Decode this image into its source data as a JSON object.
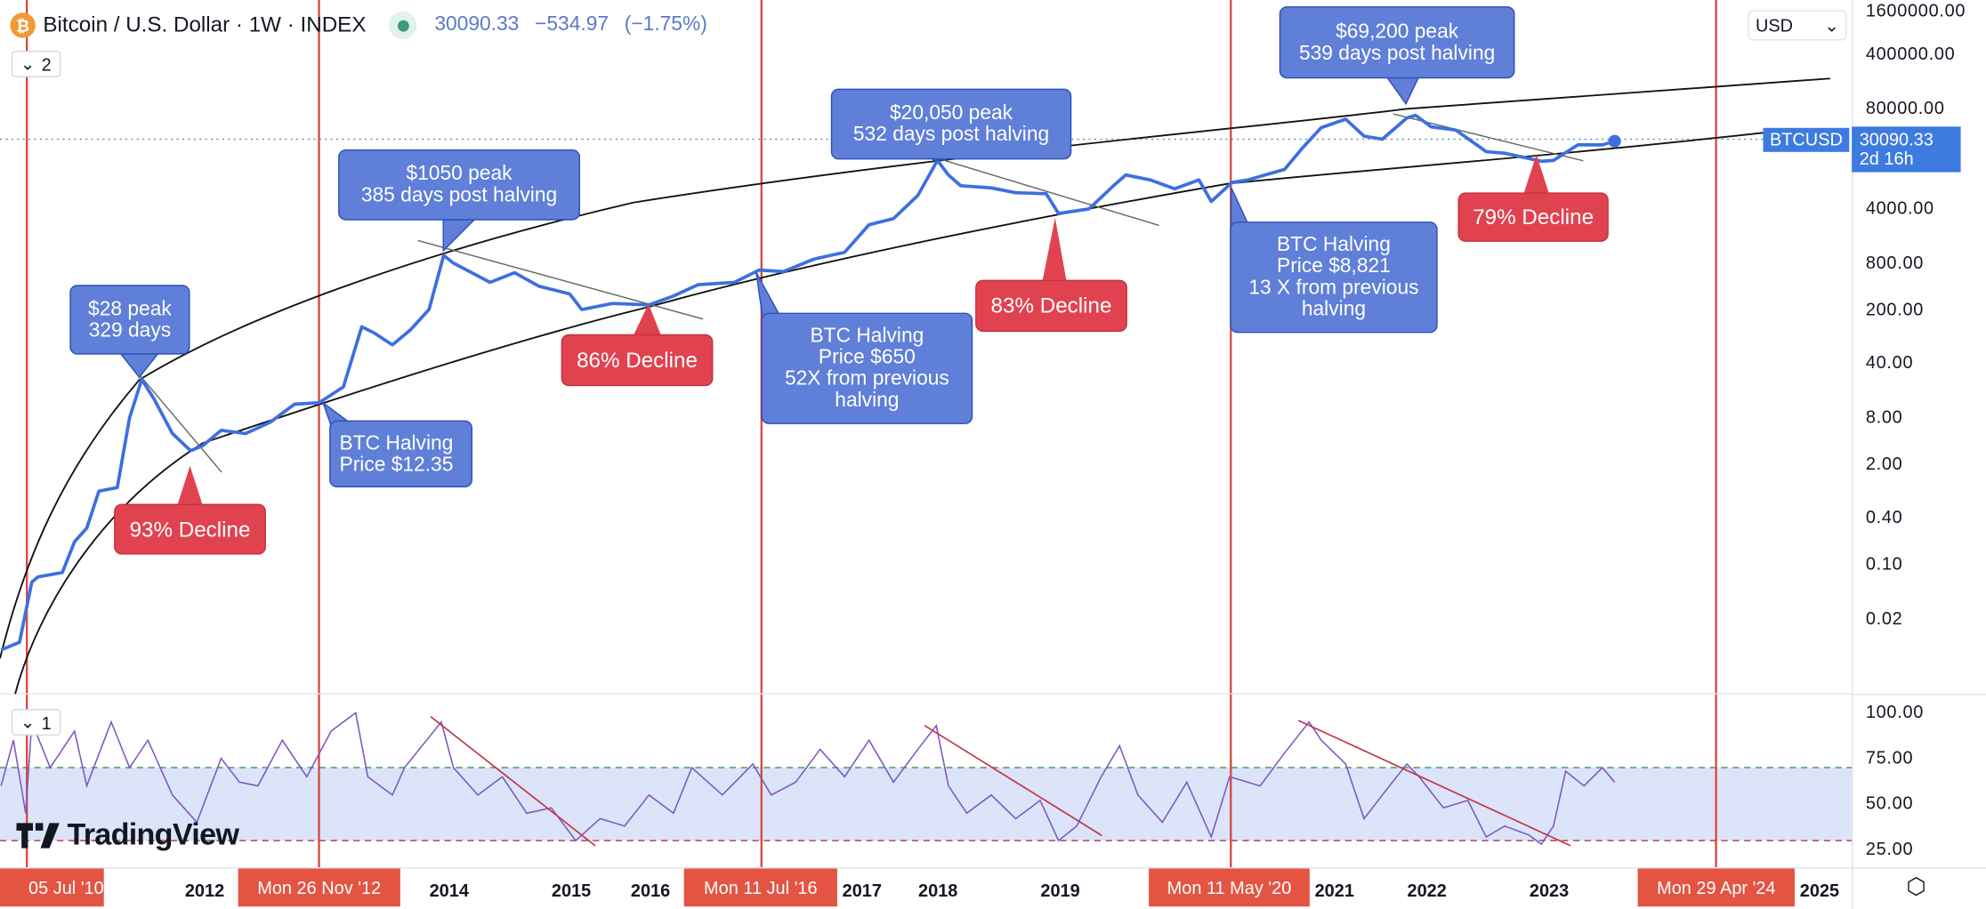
{
  "header": {
    "symbol_title": "Bitcoin / U.S. Dollar · 1W · INDEX",
    "last_price": "30090.33",
    "change": "−534.97",
    "change_pct": "(−1.75%)",
    "main_legend_count": "2",
    "rsi_legend_count": "1"
  },
  "price_axis": {
    "currency": "USD",
    "ticks": [
      "1600000.00",
      "400000.00",
      "80000.00",
      "4000.00",
      "800.00",
      "200.00",
      "40.00",
      "8.00",
      "2.00",
      "0.40",
      "0.10",
      "0.02"
    ],
    "tick_values": [
      1600000,
      400000,
      80000,
      4000,
      800,
      200,
      40,
      8,
      2,
      0.4,
      0.1,
      0.02
    ],
    "last_price_label": "30090.33",
    "countdown": "2d 16h",
    "symbol_tag": "BTCUSD"
  },
  "rsi_axis": {
    "ticks": [
      "100.00",
      "75.00",
      "50.00",
      "25.00"
    ],
    "tick_values": [
      100,
      75,
      50,
      25
    ]
  },
  "time_axis": {
    "years": [
      "2012",
      "2014",
      "2015",
      "2016",
      "2017",
      "2018",
      "2019",
      "2021",
      "2022",
      "2023",
      "2025"
    ],
    "halving_markers": [
      "05 Jul '10",
      "Mon 26 Nov '12",
      "Mon 11 Jul '16",
      "Mon 11 May '20",
      "Mon 29 Apr '24"
    ]
  },
  "branding": {
    "logo_text": "TradingView"
  },
  "colors": {
    "price_line": "#3d6fe0",
    "rsi_line": "#7e57c2",
    "rsi_band": "#dbe4f8",
    "halving_line": "#d9443a",
    "callout_blue": "#5f7fd8",
    "callout_red": "#e0434f",
    "price_tag": "#3d7be0"
  },
  "annotations": {
    "peak_2011": [
      "$28 peak",
      "329 days"
    ],
    "peak_2013": [
      "$1050 peak",
      "385 days post halving"
    ],
    "peak_2017": [
      "$20,050 peak",
      "532 days post halving"
    ],
    "peak_2021": [
      "$69,200 peak",
      "539 days post halving"
    ],
    "halving_2012": [
      "BTC Halving",
      "Price $12.35"
    ],
    "halving_2016": [
      "BTC Halving",
      "Price $650",
      "52X from previous",
      "halving"
    ],
    "halving_2020": [
      "BTC Halving",
      "Price $8,821",
      "13 X from previous",
      "halving"
    ],
    "decline_2011": "93% Decline",
    "decline_2015": "86% Decline",
    "decline_2018": "83% Decline",
    "decline_2022": "79% Decline"
  },
  "chart_data": [
    {
      "type": "line",
      "title": "Bitcoin / U.S. Dollar · 1W · INDEX",
      "y_scale": "log",
      "ylim": [
        0.005,
        1800000
      ],
      "xlim": [
        2010.3,
        2025.3
      ],
      "series": [
        {
          "name": "BTCUSD",
          "points": [
            [
              2010.3,
              0.008
            ],
            [
              2010.45,
              0.01
            ],
            [
              2010.55,
              0.06
            ],
            [
              2010.6,
              0.07
            ],
            [
              2010.8,
              0.08
            ],
            [
              2010.9,
              0.2
            ],
            [
              2011.0,
              0.3
            ],
            [
              2011.1,
              0.9
            ],
            [
              2011.25,
              1
            ],
            [
              2011.35,
              8
            ],
            [
              2011.45,
              25
            ],
            [
              2011.55,
              14
            ],
            [
              2011.7,
              5
            ],
            [
              2011.85,
              3
            ],
            [
              2011.95,
              3.5
            ],
            [
              2012.1,
              5.5
            ],
            [
              2012.3,
              5
            ],
            [
              2012.5,
              7
            ],
            [
              2012.7,
              12
            ],
            [
              2012.9,
              12.5
            ],
            [
              2013.1,
              20
            ],
            [
              2013.25,
              120
            ],
            [
              2013.35,
              100
            ],
            [
              2013.5,
              70
            ],
            [
              2013.65,
              110
            ],
            [
              2013.8,
              200
            ],
            [
              2013.92,
              1000
            ],
            [
              2014.0,
              800
            ],
            [
              2014.15,
              600
            ],
            [
              2014.3,
              450
            ],
            [
              2014.5,
              600
            ],
            [
              2014.7,
              400
            ],
            [
              2014.95,
              320
            ],
            [
              2015.05,
              200
            ],
            [
              2015.3,
              240
            ],
            [
              2015.6,
              230
            ],
            [
              2015.8,
              300
            ],
            [
              2016.0,
              420
            ],
            [
              2016.3,
              450
            ],
            [
              2016.5,
              650
            ],
            [
              2016.7,
              620
            ],
            [
              2016.95,
              900
            ],
            [
              2017.2,
              1100
            ],
            [
              2017.4,
              2500
            ],
            [
              2017.6,
              3000
            ],
            [
              2017.8,
              6000
            ],
            [
              2017.96,
              17000
            ],
            [
              2018.05,
              11000
            ],
            [
              2018.15,
              8000
            ],
            [
              2018.4,
              7500
            ],
            [
              2018.6,
              6500
            ],
            [
              2018.85,
              6300
            ],
            [
              2018.95,
              3500
            ],
            [
              2019.2,
              4000
            ],
            [
              2019.4,
              8000
            ],
            [
              2019.5,
              11000
            ],
            [
              2019.7,
              9500
            ],
            [
              2019.9,
              7300
            ],
            [
              2020.1,
              9500
            ],
            [
              2020.2,
              5000
            ],
            [
              2020.37,
              8800
            ],
            [
              2020.5,
              9500
            ],
            [
              2020.8,
              13000
            ],
            [
              2020.95,
              25000
            ],
            [
              2021.1,
              45000
            ],
            [
              2021.3,
              58000
            ],
            [
              2021.45,
              35000
            ],
            [
              2021.6,
              32000
            ],
            [
              2021.8,
              60000
            ],
            [
              2021.87,
              65000
            ],
            [
              2022.0,
              46000
            ],
            [
              2022.2,
              42000
            ],
            [
              2022.45,
              22000
            ],
            [
              2022.6,
              21000
            ],
            [
              2022.9,
              16500
            ],
            [
              2023.0,
              17000
            ],
            [
              2023.2,
              27000
            ],
            [
              2023.4,
              27000
            ],
            [
              2023.5,
              30090.33
            ]
          ]
        }
      ]
    },
    {
      "type": "line",
      "ylim": [
        20,
        105
      ],
      "reference_lines": [
        70,
        30
      ],
      "band": [
        30,
        70
      ],
      "series": [
        {
          "points": [
            [
              2010.3,
              60
            ],
            [
              2010.4,
              85
            ],
            [
              2010.5,
              45
            ],
            [
              2010.55,
              95
            ],
            [
              2010.7,
              70
            ],
            [
              2010.9,
              90
            ],
            [
              2011.0,
              60
            ],
            [
              2011.2,
              95
            ],
            [
              2011.35,
              70
            ],
            [
              2011.5,
              85
            ],
            [
              2011.7,
              55
            ],
            [
              2011.9,
              40
            ],
            [
              2012.1,
              75
            ],
            [
              2012.25,
              62
            ],
            [
              2012.4,
              60
            ],
            [
              2012.6,
              85
            ],
            [
              2012.8,
              65
            ],
            [
              2013.0,
              90
            ],
            [
              2013.2,
              100
            ],
            [
              2013.3,
              65
            ],
            [
              2013.5,
              55
            ],
            [
              2013.6,
              70
            ],
            [
              2013.9,
              95
            ],
            [
              2014.0,
              70
            ],
            [
              2014.2,
              55
            ],
            [
              2014.4,
              65
            ],
            [
              2014.6,
              45
            ],
            [
              2014.8,
              48
            ],
            [
              2015.0,
              30
            ],
            [
              2015.2,
              42
            ],
            [
              2015.4,
              38
            ],
            [
              2015.6,
              55
            ],
            [
              2015.8,
              45
            ],
            [
              2015.95,
              70
            ],
            [
              2016.2,
              55
            ],
            [
              2016.45,
              72
            ],
            [
              2016.6,
              55
            ],
            [
              2016.8,
              62
            ],
            [
              2017.0,
              80
            ],
            [
              2017.2,
              65
            ],
            [
              2017.4,
              85
            ],
            [
              2017.6,
              62
            ],
            [
              2017.8,
              80
            ],
            [
              2017.95,
              93
            ],
            [
              2018.05,
              60
            ],
            [
              2018.2,
              45
            ],
            [
              2018.4,
              55
            ],
            [
              2018.6,
              42
            ],
            [
              2018.8,
              52
            ],
            [
              2018.95,
              30
            ],
            [
              2019.1,
              38
            ],
            [
              2019.3,
              65
            ],
            [
              2019.45,
              82
            ],
            [
              2019.6,
              55
            ],
            [
              2019.8,
              40
            ],
            [
              2020.0,
              62
            ],
            [
              2020.2,
              32
            ],
            [
              2020.35,
              65
            ],
            [
              2020.6,
              60
            ],
            [
              2020.8,
              78
            ],
            [
              2021.0,
              95
            ],
            [
              2021.1,
              85
            ],
            [
              2021.3,
              72
            ],
            [
              2021.45,
              42
            ],
            [
              2021.6,
              55
            ],
            [
              2021.8,
              72
            ],
            [
              2021.9,
              65
            ],
            [
              2022.1,
              48
            ],
            [
              2022.3,
              52
            ],
            [
              2022.45,
              32
            ],
            [
              2022.6,
              38
            ],
            [
              2022.8,
              33
            ],
            [
              2022.9,
              28
            ],
            [
              2023.0,
              38
            ],
            [
              2023.1,
              68
            ],
            [
              2023.25,
              60
            ],
            [
              2023.4,
              70
            ],
            [
              2023.5,
              62
            ]
          ]
        }
      ]
    }
  ]
}
